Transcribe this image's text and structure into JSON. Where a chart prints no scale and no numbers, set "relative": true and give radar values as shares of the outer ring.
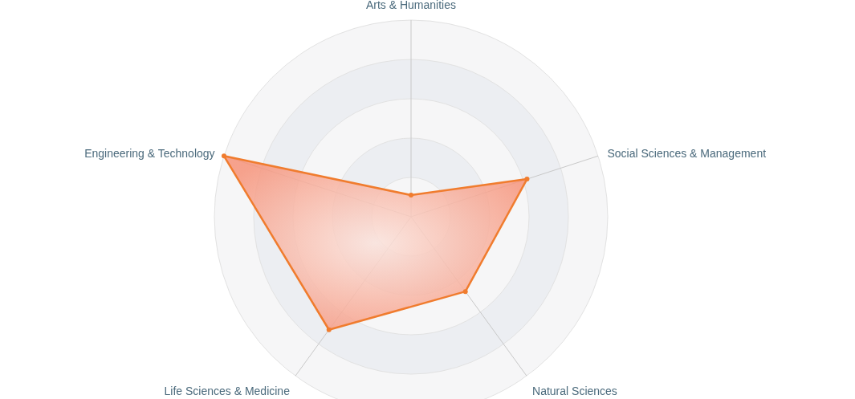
{
  "chart_data": {
    "type": "radar",
    "relative": true,
    "grid": true,
    "marker": "circle",
    "categories": [
      "Arts & Humanities",
      "Social Sciences & Management",
      "Natural Sciences",
      "Life Sciences & Medicine",
      "Engineering & Technology"
    ],
    "series": [
      {
        "color": "#f07c2e",
        "values": [
          0.11,
          0.62,
          0.47,
          0.71,
          1.0
        ]
      }
    ]
  }
}
